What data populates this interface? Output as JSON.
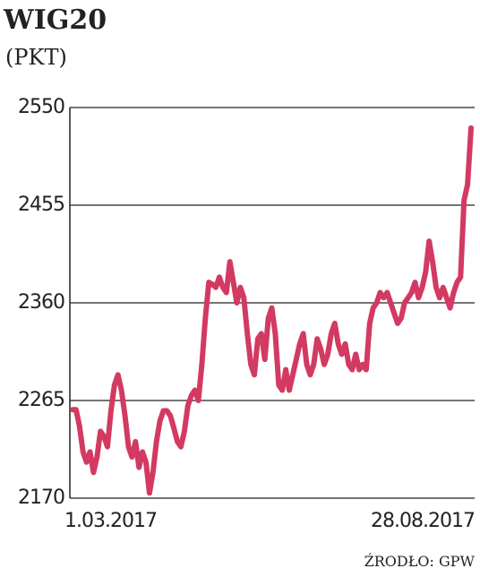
{
  "chart_data": {
    "type": "line",
    "title": "WIG20",
    "subtitle": "(PKT)",
    "source": "ŹRODŁO: GPW",
    "categories": [
      "1.03.2017",
      null,
      null,
      null,
      null,
      null,
      null,
      null,
      null,
      null,
      null,
      null,
      null,
      null,
      null,
      null,
      null,
      null,
      null,
      null,
      null,
      null,
      null,
      null,
      null,
      null,
      null,
      null,
      null,
      null,
      null,
      null,
      null,
      null,
      null,
      null,
      null,
      null,
      null,
      null,
      null,
      null,
      null,
      null,
      null,
      null,
      null,
      null,
      null,
      null,
      null,
      null,
      null,
      null,
      null,
      null,
      null,
      null,
      null,
      null,
      null,
      null,
      null,
      null,
      null,
      null,
      null,
      null,
      null,
      null,
      null,
      null,
      null,
      null,
      null,
      null,
      null,
      null,
      null,
      null,
      null,
      null,
      null,
      null,
      null,
      null,
      null,
      null,
      null,
      null,
      null,
      null,
      null,
      null,
      null,
      null,
      null,
      null,
      null,
      null,
      null,
      null,
      null,
      null,
      null,
      null,
      null,
      null,
      null,
      null,
      null,
      null,
      null,
      null,
      "28.08.2017"
    ],
    "values": [
      2256,
      2256,
      2240,
      2215,
      2205,
      2215,
      2195,
      2210,
      2235,
      2230,
      2220,
      2255,
      2280,
      2290,
      2275,
      2250,
      2220,
      2210,
      2225,
      2200,
      2215,
      2205,
      2175,
      2195,
      2225,
      2245,
      2255,
      2255,
      2250,
      2238,
      2225,
      2220,
      2235,
      2260,
      2270,
      2275,
      2265,
      2300,
      2345,
      2380,
      2378,
      2375,
      2385,
      2375,
      2370,
      2400,
      2380,
      2360,
      2375,
      2365,
      2330,
      2300,
      2290,
      2325,
      2330,
      2305,
      2345,
      2355,
      2330,
      2280,
      2275,
      2295,
      2275,
      2290,
      2305,
      2320,
      2330,
      2300,
      2290,
      2300,
      2325,
      2315,
      2300,
      2310,
      2330,
      2340,
      2320,
      2310,
      2320,
      2300,
      2295,
      2310,
      2295,
      2300,
      2295,
      2340,
      2355,
      2360,
      2370,
      2365,
      2370,
      2360,
      2350,
      2340,
      2345,
      2360,
      2365,
      2370,
      2380,
      2365,
      2375,
      2390,
      2420,
      2400,
      2375,
      2365,
      2375,
      2365,
      2355,
      2370,
      2380,
      2385,
      2460,
      2475,
      2530
    ],
    "color": "#d23a62",
    "ylim": [
      2170,
      2550
    ],
    "yticks": [
      2170,
      2265,
      2360,
      2455,
      2550
    ],
    "grid": true
  }
}
